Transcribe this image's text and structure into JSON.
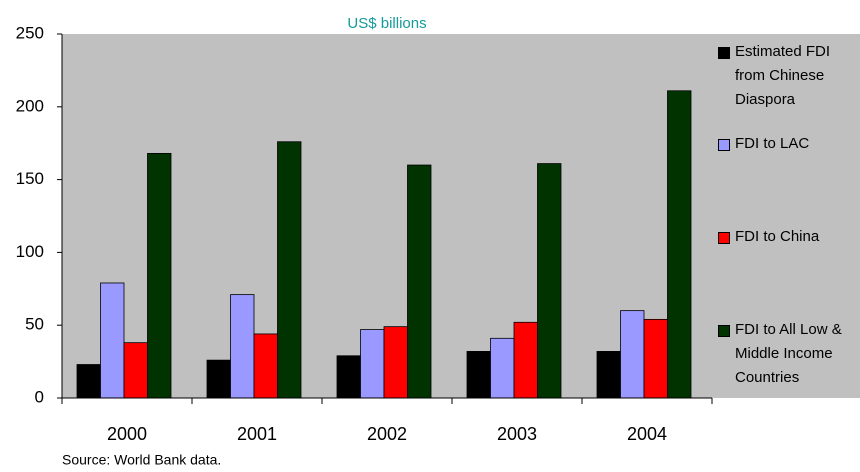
{
  "chart_data": {
    "type": "bar",
    "subtitle": "US$ billions",
    "source": "Source: World Bank data.",
    "categories": [
      "2000",
      "2001",
      "2002",
      "2003",
      "2004"
    ],
    "series": [
      {
        "name": "Estimated FDI from Chinese Diaspora",
        "color": "#000000",
        "values": [
          23,
          26,
          29,
          32,
          32
        ]
      },
      {
        "name": "FDI to LAC",
        "color": "#9999ff",
        "values": [
          79,
          71,
          47,
          41,
          60
        ]
      },
      {
        "name": "FDI to China",
        "color": "#ff0000",
        "values": [
          38,
          44,
          49,
          52,
          54
        ]
      },
      {
        "name": "FDI to All Low & Middle Income Countries",
        "color": "#003300",
        "values": [
          168,
          176,
          160,
          161,
          211
        ]
      }
    ],
    "ylim": [
      0,
      250
    ],
    "yticks": [
      0,
      50,
      100,
      150,
      200,
      250
    ],
    "background": "#c0c0c0",
    "legend": "right"
  }
}
